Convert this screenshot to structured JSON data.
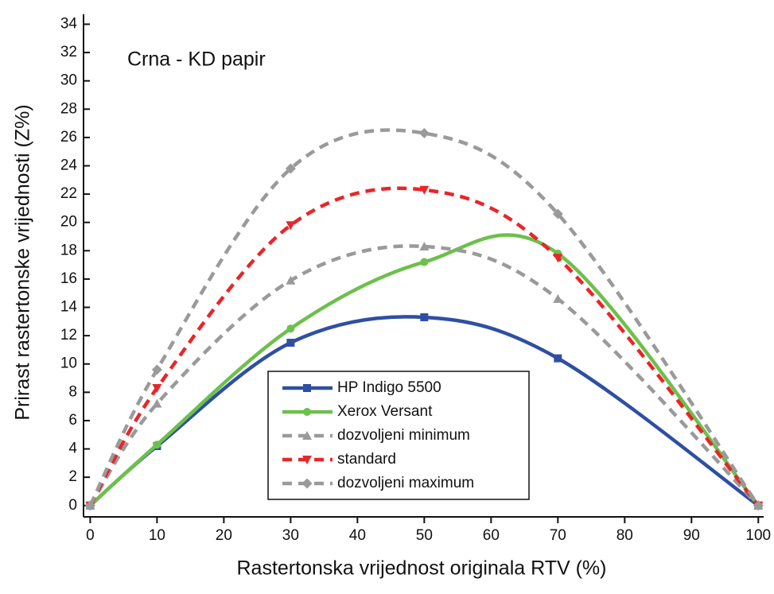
{
  "chart_data": {
    "type": "line",
    "annotation": "Crna - KD papir",
    "x_label": "Rastertonska vrijednost originala RTV (%)",
    "y_label": "Prirast rastertonske vrijednosti (Z%)",
    "x": [
      0,
      10,
      30,
      50,
      70,
      100
    ],
    "series": [
      {
        "name": "HP Indigo 5500",
        "color": "#2f4fa2",
        "marker": "square",
        "dashed": false,
        "values": [
          0,
          4.2,
          11.5,
          13.3,
          10.4,
          0
        ]
      },
      {
        "name": "Xerox Versant",
        "color": "#6dc04b",
        "marker": "circle",
        "dashed": false,
        "values": [
          0,
          4.3,
          12.5,
          17.2,
          17.8,
          0
        ]
      },
      {
        "name": "dozvoljeni minimum",
        "color": "#9a9a9a",
        "marker": "triangle-up",
        "dashed": true,
        "values": [
          0,
          7.2,
          15.9,
          18.3,
          14.6,
          0
        ]
      },
      {
        "name": "standard",
        "color": "#e8262a",
        "marker": "triangle-down",
        "dashed": true,
        "values": [
          0,
          8.3,
          19.8,
          22.3,
          17.5,
          0
        ]
      },
      {
        "name": "dozvoljeni maximum",
        "color": "#9a9a9a",
        "marker": "diamond",
        "dashed": true,
        "values": [
          0,
          9.6,
          23.8,
          26.3,
          20.6,
          0
        ]
      }
    ],
    "xlim": [
      -1,
      100.8
    ],
    "ylim": [
      -0.8,
      34.7
    ],
    "xticks": [
      0,
      10,
      20,
      30,
      40,
      50,
      60,
      70,
      80,
      90,
      100
    ],
    "yticks": [
      0,
      2,
      4,
      6,
      8,
      10,
      12,
      14,
      16,
      18,
      20,
      22,
      24,
      26,
      28,
      30,
      32,
      34
    ],
    "grid": false
  }
}
